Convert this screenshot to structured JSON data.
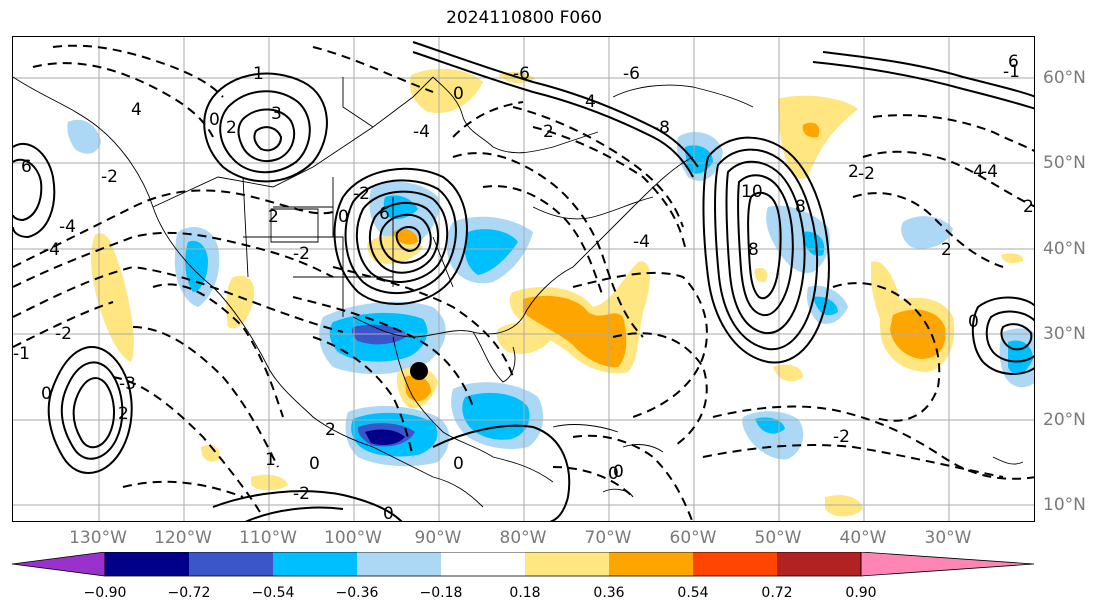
{
  "title": "2024110800 F060",
  "lon_labels": [
    "130°W",
    "120°W",
    "110°W",
    "100°W",
    "90°W",
    "80°W",
    "70°W",
    "60°W",
    "50°W",
    "40°W",
    "30°W"
  ],
  "lat_labels": [
    "60°N",
    "50°N",
    "40°N",
    "30°N",
    "20°N",
    "10°N"
  ],
  "colorbar": {
    "ticks": [
      "−0.90",
      "−0.72",
      "−0.54",
      "−0.36",
      "−0.18",
      "0.18",
      "0.36",
      "0.54",
      "0.72",
      "0.90"
    ],
    "colors": [
      "#9932cc",
      "#00008b",
      "#3a56c9",
      "#00bfff",
      "#add8f5",
      "#ffffff",
      "#ffe680",
      "#ffa500",
      "#ff4500",
      "#b22222",
      "#ff85b4"
    ]
  },
  "contour_labels": [
    "1",
    "3",
    "2",
    "4",
    "6",
    "0",
    "-2",
    "-4",
    "2",
    "0",
    "-2",
    "-4",
    "-6",
    "-8",
    "6",
    "4",
    "2",
    "0",
    "-1",
    "-2",
    "-3",
    "1",
    "0",
    "2",
    "-4",
    "-2",
    "8",
    "10",
    "8",
    "4",
    "2",
    "0",
    "-2",
    "0",
    "-4",
    "2",
    "0",
    "0",
    "-2",
    "2",
    "-1",
    "0",
    "-2",
    "-4",
    "2",
    "6",
    "0",
    "-6"
  ],
  "marker": "storm-center"
}
